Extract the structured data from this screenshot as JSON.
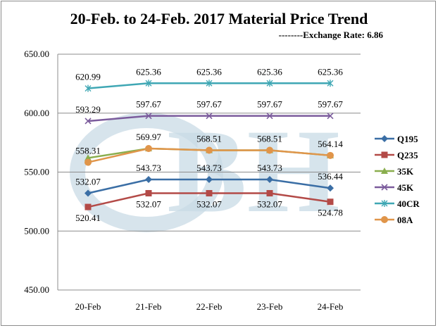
{
  "chart_data": {
    "type": "line",
    "title": "20-Feb. to 24-Feb. 2017 Material Price Trend",
    "subtitle": "--------Exchange Rate: 6.86",
    "categories": [
      "20-Feb",
      "21-Feb",
      "22-Feb",
      "23-Feb",
      "24-Feb"
    ],
    "ylim": [
      450,
      650
    ],
    "yticks": [
      "450.00",
      "500.00",
      "550.00",
      "600.00",
      "650.00"
    ],
    "grid": true,
    "legend_position": "right",
    "watermark": "BH",
    "series": [
      {
        "name": "Q195",
        "color": "#3a6ea5",
        "marker": "diamond",
        "values": [
          532.07,
          543.73,
          543.73,
          543.73,
          536.44
        ],
        "labels": [
          "532.07",
          "543.73",
          "543.73",
          "543.73",
          "536.44"
        ],
        "label_pos": "above"
      },
      {
        "name": "Q235",
        "color": "#b34a47",
        "marker": "square",
        "values": [
          520.41,
          532.07,
          532.07,
          532.07,
          524.78
        ],
        "labels": [
          "520.41",
          "532.07",
          "532.07",
          "532.07",
          "524.78"
        ],
        "label_pos": "below"
      },
      {
        "name": "35K",
        "color": "#8aae4e",
        "marker": "triangle",
        "values": [
          562.0,
          569.97,
          568.51,
          568.51,
          564.14
        ],
        "labels": [],
        "label_pos": "none"
      },
      {
        "name": "45K",
        "color": "#7b5b9c",
        "marker": "x",
        "values": [
          593.29,
          597.67,
          597.67,
          597.67,
          597.67
        ],
        "labels": [
          "593.29",
          "597.67",
          "597.67",
          "597.67",
          "597.67"
        ],
        "label_pos": "above"
      },
      {
        "name": "40CR",
        "color": "#3fa7b4",
        "marker": "star",
        "values": [
          620.99,
          625.36,
          625.36,
          625.36,
          625.36
        ],
        "labels": [
          "620.99",
          "625.36",
          "625.36",
          "625.36",
          "625.36"
        ],
        "label_pos": "above"
      },
      {
        "name": "08A",
        "color": "#e0954a",
        "marker": "circle",
        "values": [
          558.31,
          569.97,
          568.51,
          568.51,
          564.14
        ],
        "labels": [
          "558.31",
          "569.97",
          "568.51",
          "568.51",
          "564.14"
        ],
        "label_pos": "above"
      }
    ]
  }
}
